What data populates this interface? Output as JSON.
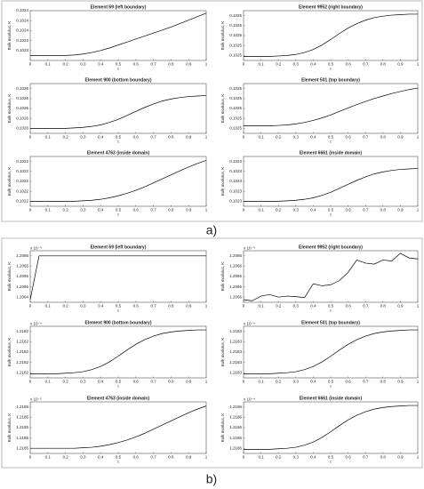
{
  "panel_labels": [
    "a)",
    "b)"
  ],
  "chart_data": [
    {
      "type": "line",
      "title": "Element 69 (left boundary)",
      "xlabel": "t",
      "ylabel": "Bulk modulus, K",
      "color": "#000000",
      "xlim": [
        0,
        1
      ],
      "ylim": [
        0.1023,
        0.1024
      ],
      "xticks": [
        0,
        0.1,
        0.2,
        0.3,
        0.4,
        0.5,
        0.6,
        0.7,
        0.8,
        0.9,
        1
      ],
      "yticks": [
        {
          "value": 0.10232,
          "label": "0.1023"
        },
        {
          "value": 0.10234,
          "label": "0.1023"
        },
        {
          "value": 0.10236,
          "label": "0.1024"
        },
        {
          "value": 0.10238,
          "label": "0.1024"
        },
        0.1024
      ],
      "x": [
        0,
        0.05,
        0.1,
        0.15,
        0.2,
        0.25,
        0.3,
        0.35,
        0.4,
        0.45,
        0.5,
        0.55,
        0.6,
        0.65,
        0.7,
        0.75,
        0.8,
        0.85,
        0.9,
        0.95,
        1
      ],
      "values": [
        0.10231,
        0.10231,
        0.10231,
        0.10231,
        0.10231,
        0.102311,
        0.102313,
        0.102316,
        0.10232,
        0.102325,
        0.102331,
        0.102337,
        0.102343,
        0.102349,
        0.102355,
        0.102361,
        0.102367,
        0.102374,
        0.102381,
        0.102388,
        0.102395
      ]
    },
    {
      "type": "line",
      "title": "Element 9952 (right boundary)",
      "xlabel": "t",
      "ylabel": "Bulk modulus, K",
      "color": "#000000",
      "xlim": [
        0,
        1
      ],
      "ylim": [
        0.10245,
        0.10255
      ],
      "xticks": [
        0,
        0.1,
        0.2,
        0.3,
        0.4,
        0.5,
        0.6,
        0.7,
        0.8,
        0.9,
        1
      ],
      "yticks": [
        {
          "value": 0.10246,
          "label": "0.1025"
        },
        {
          "value": 0.10248,
          "label": "0.1025"
        },
        0.1025,
        {
          "value": 0.10252,
          "label": "0.1025"
        },
        {
          "value": 0.10254,
          "label": "0.1025"
        }
      ],
      "x": [
        0,
        0.05,
        0.1,
        0.15,
        0.2,
        0.25,
        0.3,
        0.35,
        0.4,
        0.45,
        0.5,
        0.55,
        0.6,
        0.65,
        0.7,
        0.75,
        0.8,
        0.85,
        0.9,
        0.95,
        1
      ],
      "values": [
        0.102458,
        0.102458,
        0.102458,
        0.102458,
        0.102459,
        0.10246,
        0.102462,
        0.102466,
        0.102472,
        0.102481,
        0.102492,
        0.102504,
        0.102515,
        0.102524,
        0.102531,
        0.102536,
        0.102539,
        0.102541,
        0.102542,
        0.102543,
        0.102543
      ]
    },
    {
      "type": "line",
      "title": "Element 900 (bottom boundary)",
      "xlabel": "t",
      "ylabel": "Bulk modulus, K",
      "color": "#000000",
      "xlim": [
        0,
        1
      ],
      "ylim": [
        0.10255,
        0.10265
      ],
      "xticks": [
        0,
        0.1,
        0.2,
        0.3,
        0.4,
        0.5,
        0.6,
        0.7,
        0.8,
        0.9,
        1
      ],
      "yticks": [
        {
          "value": 0.10256,
          "label": "0.1026"
        },
        {
          "value": 0.10258,
          "label": "0.1026"
        },
        0.1026,
        {
          "value": 0.10262,
          "label": "0.1026"
        },
        {
          "value": 0.10264,
          "label": "0.1026"
        }
      ],
      "x": [
        0,
        0.05,
        0.1,
        0.15,
        0.2,
        0.25,
        0.3,
        0.35,
        0.4,
        0.45,
        0.5,
        0.55,
        0.6,
        0.65,
        0.7,
        0.75,
        0.8,
        0.85,
        0.9,
        0.95,
        1
      ],
      "values": [
        0.10256,
        0.10256,
        0.10256,
        0.10256,
        0.10256,
        0.102561,
        0.102562,
        0.102564,
        0.102567,
        0.102572,
        0.102578,
        0.102586,
        0.102594,
        0.102602,
        0.102609,
        0.102615,
        0.102619,
        0.102622,
        0.102624,
        0.102625,
        0.102626
      ]
    },
    {
      "type": "line",
      "title": "Element 501 (top boundary)",
      "xlabel": "t",
      "ylabel": "Bulk modulus, K",
      "color": "#000000",
      "xlim": [
        0,
        1
      ],
      "ylim": [
        0.10245,
        0.10255
      ],
      "xticks": [
        0,
        0.1,
        0.2,
        0.3,
        0.4,
        0.5,
        0.6,
        0.7,
        0.8,
        0.9,
        1
      ],
      "yticks": [
        {
          "value": 0.10246,
          "label": "0.1025"
        },
        {
          "value": 0.10248,
          "label": "0.1025"
        },
        0.1025,
        {
          "value": 0.10252,
          "label": "0.1025"
        },
        {
          "value": 0.10254,
          "label": "0.1025"
        }
      ],
      "x": [
        0,
        0.05,
        0.1,
        0.15,
        0.2,
        0.25,
        0.3,
        0.35,
        0.4,
        0.45,
        0.5,
        0.55,
        0.6,
        0.65,
        0.7,
        0.75,
        0.8,
        0.85,
        0.9,
        0.95,
        1
      ],
      "values": [
        0.102465,
        0.102465,
        0.102465,
        0.102465,
        0.102466,
        0.102467,
        0.102469,
        0.102472,
        0.102476,
        0.102481,
        0.102487,
        0.102494,
        0.102501,
        0.102508,
        0.102514,
        0.10252,
        0.102525,
        0.10253,
        0.102534,
        0.102538,
        0.102541
      ]
    },
    {
      "type": "line",
      "title": "Element 4763 (inside domain)",
      "xlabel": "t",
      "ylabel": "Bulk modulus, K",
      "color": "#000000",
      "xlim": [
        0,
        1
      ],
      "ylim": [
        0.10215,
        0.10225
      ],
      "xticks": [
        0,
        0.1,
        0.2,
        0.3,
        0.4,
        0.5,
        0.6,
        0.7,
        0.8,
        0.9,
        1
      ],
      "yticks": [
        {
          "value": 0.10216,
          "label": "0.1022"
        },
        {
          "value": 0.10218,
          "label": "0.1022"
        },
        0.1022,
        {
          "value": 0.10222,
          "label": "0.1022"
        },
        {
          "value": 0.10224,
          "label": "0.1022"
        }
      ],
      "x": [
        0,
        0.05,
        0.1,
        0.15,
        0.2,
        0.25,
        0.3,
        0.35,
        0.4,
        0.45,
        0.5,
        0.55,
        0.6,
        0.65,
        0.7,
        0.75,
        0.8,
        0.85,
        0.9,
        0.95,
        1
      ],
      "values": [
        0.10216,
        0.10216,
        0.10216,
        0.10216,
        0.10216,
        0.10216,
        0.102161,
        0.102162,
        0.102164,
        0.102167,
        0.102171,
        0.102176,
        0.102182,
        0.102189,
        0.102197,
        0.102205,
        0.102213,
        0.102221,
        0.102229,
        0.102236,
        0.102242
      ]
    },
    {
      "type": "line",
      "title": "Element 6661 (inside domain)",
      "xlabel": "t",
      "ylabel": "Bulk modulus, K",
      "color": "#000000",
      "xlim": [
        0,
        1
      ],
      "ylim": [
        0.10225,
        0.10235
      ],
      "xticks": [
        0,
        0.1,
        0.2,
        0.3,
        0.4,
        0.5,
        0.6,
        0.7,
        0.8,
        0.9,
        1
      ],
      "yticks": [
        {
          "value": 0.10226,
          "label": "0.1023"
        },
        {
          "value": 0.10228,
          "label": "0.1023"
        },
        0.1023,
        {
          "value": 0.10232,
          "label": "0.1023"
        },
        {
          "value": 0.10234,
          "label": "0.1023"
        }
      ],
      "x": [
        0,
        0.05,
        0.1,
        0.15,
        0.2,
        0.25,
        0.3,
        0.35,
        0.4,
        0.45,
        0.5,
        0.55,
        0.6,
        0.65,
        0.7,
        0.75,
        0.8,
        0.85,
        0.9,
        0.95,
        1
      ],
      "values": [
        0.10226,
        0.10226,
        0.10226,
        0.10226,
        0.10226,
        0.102261,
        0.102262,
        0.102264,
        0.102267,
        0.102272,
        0.102278,
        0.102286,
        0.102294,
        0.102302,
        0.102309,
        0.102315,
        0.102319,
        0.102322,
        0.102324,
        0.102325,
        0.102326
      ]
    },
    {
      "type": "line",
      "title": "Element 69 (left boundary)",
      "xlabel": "t",
      "ylabel": "Bulk modulus, K",
      "y_multiplier": "x 10⁻⁴",
      "color": "#000000",
      "xlim": [
        0,
        1
      ],
      "ylim": [
        1.2064,
        1.2066
      ],
      "xticks": [
        0,
        0.1,
        0.2,
        0.3,
        0.4,
        0.5,
        0.6,
        0.7,
        0.8,
        0.9,
        1
      ],
      "yticks": [
        {
          "value": 1.20642,
          "label": "1.2064"
        },
        {
          "value": 1.20646,
          "label": "1.2065"
        },
        1.2065,
        {
          "value": 1.20654,
          "label": "1.2065"
        },
        {
          "value": 1.20658,
          "label": "1.2066"
        }
      ],
      "x": [
        0,
        0.05,
        0.1,
        0.15,
        0.2,
        0.25,
        0.3,
        0.35,
        0.4,
        0.45,
        0.5,
        0.55,
        0.6,
        0.65,
        0.7,
        0.75,
        0.8,
        0.85,
        0.9,
        0.95,
        1
      ],
      "values": [
        1.20641,
        1.20658,
        1.20658,
        1.20658,
        1.20658,
        1.20658,
        1.20658,
        1.20658,
        1.20658,
        1.20658,
        1.20658,
        1.20658,
        1.20658,
        1.20658,
        1.20658,
        1.20658,
        1.20658,
        1.20658,
        1.20658,
        1.20658,
        1.20658
      ]
    },
    {
      "type": "line",
      "title": "Element 9952 (right boundary)",
      "xlabel": "t",
      "ylabel": "Bulk modulus, K",
      "y_multiplier": "x 10⁻⁴",
      "color": "#000000",
      "xlim": [
        0,
        1
      ],
      "ylim": [
        1.20655,
        1.20665
      ],
      "xticks": [
        0,
        0.1,
        0.2,
        0.3,
        0.4,
        0.5,
        0.6,
        0.7,
        0.8,
        0.9,
        1
      ],
      "yticks": [
        {
          "value": 1.20656,
          "label": "1.2066"
        },
        {
          "value": 1.20658,
          "label": "1.2066"
        },
        1.2066,
        {
          "value": 1.20662,
          "label": "1.2066"
        },
        {
          "value": 1.20664,
          "label": "1.2066"
        }
      ],
      "x": [
        0,
        0.05,
        0.1,
        0.15,
        0.2,
        0.25,
        0.3,
        0.35,
        0.4,
        0.45,
        0.5,
        0.55,
        0.6,
        0.65,
        0.7,
        0.75,
        0.8,
        0.85,
        0.9,
        0.95,
        1
      ],
      "values": [
        1.206555,
        1.206553,
        1.206562,
        1.206565,
        1.20656,
        1.206562,
        1.206561,
        1.206559,
        1.206586,
        1.206582,
        1.206584,
        1.206592,
        1.206608,
        1.206632,
        1.206626,
        1.206624,
        1.206632,
        1.20663,
        1.206645,
        1.206636,
        1.206634
      ]
    },
    {
      "type": "line",
      "title": "Element 900 (bottom boundary)",
      "xlabel": "t",
      "ylabel": "Bulk modulus, K",
      "y_multiplier": "x 10⁻⁴",
      "color": "#000000",
      "xlim": [
        0,
        1
      ],
      "ylim": [
        1.21815,
        1.21825
      ],
      "xticks": [
        0,
        0.1,
        0.2,
        0.3,
        0.4,
        0.5,
        0.6,
        0.7,
        0.8,
        0.9,
        1
      ],
      "yticks": [
        {
          "value": 1.21816,
          "label": "1.2182"
        },
        {
          "value": 1.21818,
          "label": "1.2182"
        },
        1.2182,
        {
          "value": 1.21822,
          "label": "1.2182"
        },
        {
          "value": 1.21824,
          "label": "1.2182"
        }
      ],
      "x": [
        0,
        0.05,
        0.1,
        0.15,
        0.2,
        0.25,
        0.3,
        0.35,
        0.4,
        0.45,
        0.5,
        0.55,
        0.6,
        0.65,
        0.7,
        0.75,
        0.8,
        0.85,
        0.9,
        0.95,
        1
      ],
      "values": [
        1.218158,
        1.218158,
        1.218158,
        1.218158,
        1.218159,
        1.21816,
        1.218162,
        1.218166,
        1.218172,
        1.218181,
        1.218192,
        1.218204,
        1.218215,
        1.218224,
        1.218231,
        1.218236,
        1.218239,
        1.218241,
        1.218242,
        1.218243,
        1.218243
      ]
    },
    {
      "type": "line",
      "title": "Element 501 (top boundary)",
      "xlabel": "t",
      "ylabel": "Bulk modulus, K",
      "y_multiplier": "x 10⁻⁴",
      "color": "#000000",
      "xlim": [
        0,
        1
      ],
      "ylim": [
        1.21825,
        1.21835
      ],
      "xticks": [
        0,
        0.1,
        0.2,
        0.3,
        0.4,
        0.5,
        0.6,
        0.7,
        0.8,
        0.9,
        1
      ],
      "yticks": [
        {
          "value": 1.21826,
          "label": "1.2183"
        },
        {
          "value": 1.21828,
          "label": "1.2183"
        },
        1.2183,
        {
          "value": 1.21832,
          "label": "1.2183"
        },
        {
          "value": 1.21834,
          "label": "1.2183"
        }
      ],
      "x": [
        0,
        0.05,
        0.1,
        0.15,
        0.2,
        0.25,
        0.3,
        0.35,
        0.4,
        0.45,
        0.5,
        0.55,
        0.6,
        0.65,
        0.7,
        0.75,
        0.8,
        0.85,
        0.9,
        0.95,
        1
      ],
      "values": [
        1.218258,
        1.218258,
        1.218258,
        1.218258,
        1.218259,
        1.21826,
        1.218262,
        1.218266,
        1.218272,
        1.218281,
        1.218292,
        1.218304,
        1.218315,
        1.218324,
        1.218331,
        1.218336,
        1.218339,
        1.218341,
        1.218342,
        1.218343,
        1.218343
      ]
    },
    {
      "type": "line",
      "title": "Element 4763 (inside domain)",
      "xlabel": "t",
      "ylabel": "Bulk modulus, K",
      "y_multiplier": "x 10⁻⁵",
      "color": "#000000",
      "xlim": [
        0,
        1
      ],
      "ylim": [
        1.21845,
        1.21855
      ],
      "xticks": [
        0,
        0.1,
        0.2,
        0.3,
        0.4,
        0.5,
        0.6,
        0.7,
        0.8,
        0.9,
        1
      ],
      "yticks": [
        {
          "value": 1.21846,
          "label": "1.2185"
        },
        {
          "value": 1.21848,
          "label": "1.2185"
        },
        1.2185,
        {
          "value": 1.21852,
          "label": "1.2185"
        },
        {
          "value": 1.21854,
          "label": "1.2185"
        }
      ],
      "x": [
        0,
        0.05,
        0.1,
        0.15,
        0.2,
        0.25,
        0.3,
        0.35,
        0.4,
        0.45,
        0.5,
        0.55,
        0.6,
        0.65,
        0.7,
        0.75,
        0.8,
        0.85,
        0.9,
        0.95,
        1
      ],
      "values": [
        1.21846,
        1.21846,
        1.21846,
        1.21846,
        1.21846,
        1.21846,
        1.218461,
        1.218462,
        1.218464,
        1.218467,
        1.218471,
        1.218476,
        1.218482,
        1.218489,
        1.218497,
        1.218505,
        1.218513,
        1.218521,
        1.218529,
        1.218536,
        1.218542
      ]
    },
    {
      "type": "line",
      "title": "Element 6661 (inside domain)",
      "xlabel": "t",
      "ylabel": "Bulk modulus, K",
      "y_multiplier": "x 10⁻⁴",
      "color": "#000000",
      "xlim": [
        0,
        1
      ],
      "ylim": [
        1.21855,
        1.21865
      ],
      "xticks": [
        0,
        0.1,
        0.2,
        0.3,
        0.4,
        0.5,
        0.6,
        0.7,
        0.8,
        0.9,
        1
      ],
      "yticks": [
        {
          "value": 1.21856,
          "label": "1.2186"
        },
        {
          "value": 1.21858,
          "label": "1.2186"
        },
        1.2186,
        {
          "value": 1.21862,
          "label": "1.2186"
        },
        {
          "value": 1.21864,
          "label": "1.2186"
        }
      ],
      "x": [
        0,
        0.05,
        0.1,
        0.15,
        0.2,
        0.25,
        0.3,
        0.35,
        0.4,
        0.45,
        0.5,
        0.55,
        0.6,
        0.65,
        0.7,
        0.75,
        0.8,
        0.85,
        0.9,
        0.95,
        1
      ],
      "values": [
        1.218558,
        1.218558,
        1.218558,
        1.218558,
        1.218559,
        1.21856,
        1.218562,
        1.218566,
        1.218572,
        1.218581,
        1.218592,
        1.218604,
        1.218615,
        1.218624,
        1.218631,
        1.218636,
        1.218639,
        1.218641,
        1.218642,
        1.218643,
        1.218643
      ]
    }
  ]
}
